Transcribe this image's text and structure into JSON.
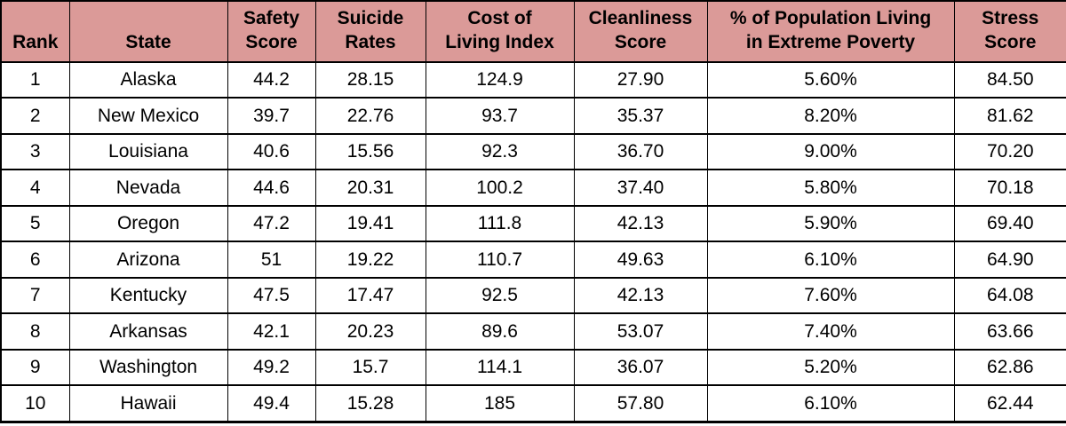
{
  "title": "Top 10 most stressed US states table",
  "colors": {
    "header_bg": "#DB9A98",
    "border": "#000000",
    "text": "#000000",
    "row_bg": "#FFFFFF"
  },
  "chart_data": {
    "type": "table",
    "columns": [
      "Rank",
      "State",
      "Safety\nScore",
      "Suicide\nRates",
      "Cost of\nLiving Index",
      "Cleanliness\nScore",
      "% of Population Living\nin Extreme Poverty",
      "Stress\nScore"
    ],
    "column_names_plain": [
      "Rank",
      "State",
      "Safety Score",
      "Suicide Rates",
      "Cost of Living Index",
      "Cleanliness Score",
      "% of Population Living in Extreme Poverty",
      "Stress Score"
    ],
    "rows": [
      [
        "1",
        "Alaska",
        "44.2",
        "28.15",
        "124.9",
        "27.90",
        "5.60%",
        "84.50"
      ],
      [
        "2",
        "New Mexico",
        "39.7",
        "22.76",
        "93.7",
        "35.37",
        "8.20%",
        "81.62"
      ],
      [
        "3",
        "Louisiana",
        "40.6",
        "15.56",
        "92.3",
        "36.70",
        "9.00%",
        "70.20"
      ],
      [
        "4",
        "Nevada",
        "44.6",
        "20.31",
        "100.2",
        "37.40",
        "5.80%",
        "70.18"
      ],
      [
        "5",
        "Oregon",
        "47.2",
        "19.41",
        "111.8",
        "42.13",
        "5.90%",
        "69.40"
      ],
      [
        "6",
        "Arizona",
        "51",
        "19.22",
        "110.7",
        "49.63",
        "6.10%",
        "64.90"
      ],
      [
        "7",
        "Kentucky",
        "47.5",
        "17.47",
        "92.5",
        "42.13",
        "7.60%",
        "64.08"
      ],
      [
        "8",
        "Arkansas",
        "42.1",
        "20.23",
        "89.6",
        "53.07",
        "7.40%",
        "63.66"
      ],
      [
        "9",
        "Washington",
        "49.2",
        "15.7",
        "114.1",
        "36.07",
        "5.20%",
        "62.86"
      ],
      [
        "10",
        "Hawaii",
        "49.4",
        "15.28",
        "185",
        "57.80",
        "6.10%",
        "62.44"
      ]
    ]
  }
}
